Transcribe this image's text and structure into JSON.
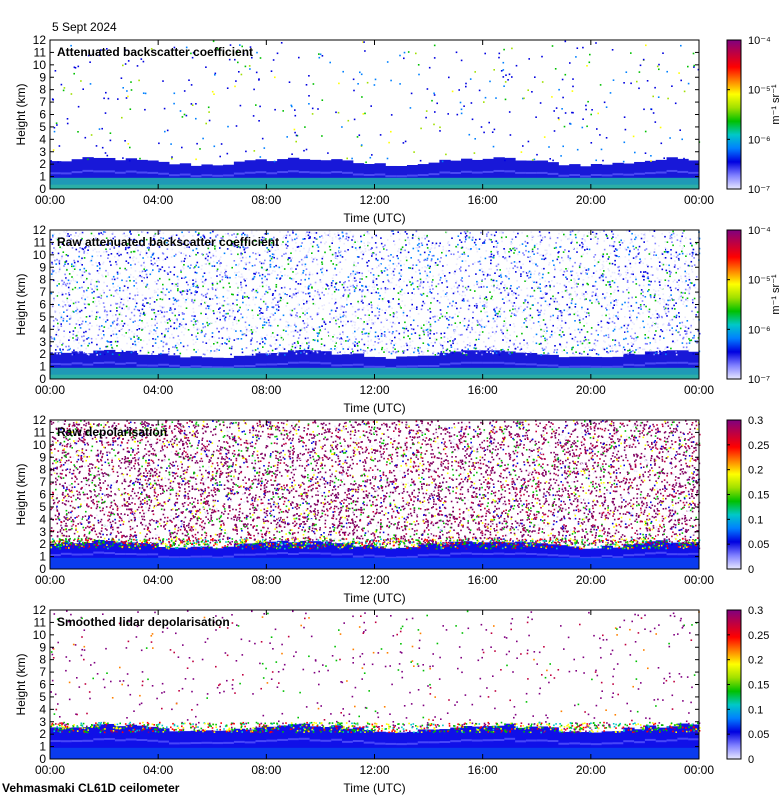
{
  "date": "5 Sept 2024",
  "footer": "Vehmasmaki CL61D ceilometer",
  "colors": {
    "jet": [
      "#e8e8ff",
      "#8080ff",
      "#0000e0",
      "#0080ff",
      "#00c8c8",
      "#00c000",
      "#a0e000",
      "#ffff00",
      "#ff8000",
      "#ff0000",
      "#c00040",
      "#800080"
    ],
    "ground_cyan": "#20b0b0",
    "frame": "#000000"
  },
  "chart_data": [
    {
      "type": "heatmap",
      "title": "Attenuated backscatter coefficient",
      "xlabel": "Time (UTC)",
      "ylabel": "Height (km)",
      "x_ticks": [
        "00:00",
        "04:00",
        "08:00",
        "12:00",
        "16:00",
        "20:00",
        "00:00"
      ],
      "y_ticks": [
        "0",
        "1",
        "2",
        "3",
        "4",
        "5",
        "6",
        "7",
        "8",
        "9",
        "10",
        "11",
        "12"
      ],
      "ylim": [
        0,
        12
      ],
      "colorbar": {
        "scale": "log",
        "unit": "m⁻¹ sr⁻¹",
        "ticks": [
          "10⁻⁴",
          "10⁻⁵",
          "10⁻⁶",
          "10⁻⁷"
        ]
      },
      "pattern": {
        "boundary_layer_top_km": 2.2,
        "noise_density": 0.05
      }
    },
    {
      "type": "heatmap",
      "title": "Raw attenuated backscatter coefficient",
      "xlabel": "Time (UTC)",
      "ylabel": "Height (km)",
      "x_ticks": [
        "00:00",
        "04:00",
        "08:00",
        "12:00",
        "16:00",
        "20:00",
        "00:00"
      ],
      "y_ticks": [
        "0",
        "1",
        "2",
        "3",
        "4",
        "5",
        "6",
        "7",
        "8",
        "9",
        "10",
        "11",
        "12"
      ],
      "ylim": [
        0,
        12
      ],
      "colorbar": {
        "scale": "log",
        "unit": "m⁻¹ sr⁻¹",
        "ticks": [
          "10⁻⁴",
          "10⁻⁵",
          "10⁻⁶",
          "10⁻⁷"
        ]
      },
      "pattern": {
        "boundary_layer_top_km": 2.0,
        "noise_density": 0.55
      }
    },
    {
      "type": "heatmap",
      "title": "Raw depolarisation",
      "xlabel": "Time (UTC)",
      "ylabel": "Height (km)",
      "x_ticks": [
        "00:00",
        "04:00",
        "08:00",
        "12:00",
        "16:00",
        "20:00",
        "00:00"
      ],
      "y_ticks": [
        "0",
        "1",
        "2",
        "3",
        "4",
        "5",
        "6",
        "7",
        "8",
        "9",
        "10",
        "11",
        "12"
      ],
      "ylim": [
        0,
        12
      ],
      "colorbar": {
        "scale": "linear",
        "unit": "",
        "ticks": [
          "0.3",
          "0.25",
          "0.2",
          "0.15",
          "0.1",
          "0.05",
          "0"
        ]
      },
      "pattern": {
        "boundary_layer_top_km": 2.0,
        "noise_density": 0.85
      }
    },
    {
      "type": "heatmap",
      "title": "Smoothed lidar depolarisation",
      "xlabel": "Time (UTC)",
      "ylabel": "Height (km)",
      "x_ticks": [
        "00:00",
        "04:00",
        "08:00",
        "12:00",
        "16:00",
        "20:00",
        "00:00"
      ],
      "y_ticks": [
        "0",
        "1",
        "2",
        "3",
        "4",
        "5",
        "6",
        "7",
        "8",
        "9",
        "10",
        "11",
        "12"
      ],
      "ylim": [
        0,
        12
      ],
      "colorbar": {
        "scale": "linear",
        "unit": "",
        "ticks": [
          "0.3",
          "0.25",
          "0.2",
          "0.15",
          "0.1",
          "0.05",
          "0"
        ]
      },
      "pattern": {
        "boundary_layer_top_km": 2.5,
        "noise_density": 0.06
      }
    }
  ]
}
